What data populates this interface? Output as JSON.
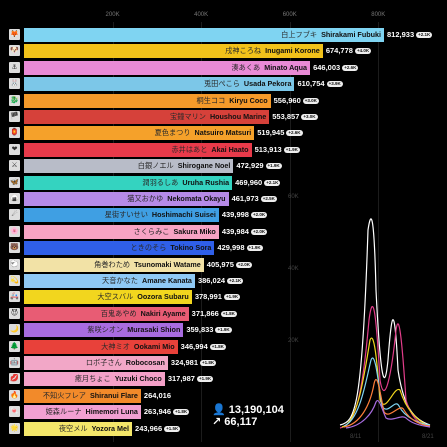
{
  "chart_data": {
    "type": "bar",
    "xlim": [
      0,
      850000
    ],
    "x_ticks": [
      "200K",
      "400K",
      "600K",
      "800K"
    ],
    "x_tick_values": [
      200000,
      400000,
      600000,
      800000
    ],
    "rows": [
      {
        "jp": "白上フブキ",
        "en": "Shirakami Fubuki",
        "value": 812933,
        "display": "812,933",
        "badge": "+2.1K",
        "color": "#7fd4f2",
        "icon": "🦊"
      },
      {
        "jp": "戌神ころね",
        "en": "Inugami Korone",
        "value": 674778,
        "display": "674,778",
        "badge": "+4.0K",
        "color": "#f2c21a",
        "icon": "🐶"
      },
      {
        "jp": "湊あくあ",
        "en": "Minato Aqua",
        "value": 646003,
        "display": "646,003",
        "badge": "+2.6K",
        "color": "#e98ad6",
        "icon": "⚓"
      },
      {
        "jp": "兎田ぺこら",
        "en": "Usada Pekora",
        "value": 610754,
        "display": "610,754",
        "badge": "+3.9K",
        "color": "#7cc7e8",
        "icon": "🐰"
      },
      {
        "jp": "桐生ココ",
        "en": "Kiryu Coco",
        "value": 556960,
        "display": "556,960",
        "badge": "+3.0K",
        "color": "#f59a2a",
        "icon": "🐉"
      },
      {
        "jp": "宝鐘マリン",
        "en": "Houshou Marine",
        "value": 553857,
        "display": "553,857",
        "badge": "+3.0K",
        "color": "#d6413a",
        "icon": "🏴"
      },
      {
        "jp": "夏色まつり",
        "en": "Natsuiro Matsuri",
        "value": 519945,
        "display": "519,945",
        "badge": "+2.6K",
        "color": "#f5a12a",
        "icon": "🏮"
      },
      {
        "jp": "赤井はあと",
        "en": "Akai Haato",
        "value": 513913,
        "display": "513,913",
        "badge": "+1.9K",
        "color": "#e83a4a",
        "icon": "❤"
      },
      {
        "jp": "白銀ノエル",
        "en": "Shirogane Noel",
        "value": 472929,
        "display": "472,929",
        "badge": "+1.9K",
        "color": "#b8bcc8",
        "icon": "⚔"
      },
      {
        "jp": "潤羽るしあ",
        "en": "Uruha Rushia",
        "value": 469960,
        "display": "469,960",
        "badge": "+2.1K",
        "color": "#34d3c0",
        "icon": "🦋"
      },
      {
        "jp": "猫又おかゆ",
        "en": "Nekomata Okayu",
        "value": 461973,
        "display": "461,973",
        "badge": "+2.5K",
        "color": "#b68ae8",
        "icon": "🍙"
      },
      {
        "jp": "星街すいせい",
        "en": "Hoshimachi Suisei",
        "value": 439998,
        "display": "439,998",
        "badge": "+2.0K",
        "color": "#3f9fe3",
        "icon": "☄"
      },
      {
        "jp": "さくらみこ",
        "en": "Sakura Miko",
        "value": 439984,
        "display": "439,984",
        "badge": "+2.0K",
        "color": "#f7a3c4",
        "icon": "🌸"
      },
      {
        "jp": "ときのそら",
        "en": "Tokino Sora",
        "value": 429998,
        "display": "429,998",
        "badge": "+1.9K",
        "color": "#2f5fe8",
        "icon": "🐻"
      },
      {
        "jp": "角巻わため",
        "en": "Tsunomaki Watame",
        "value": 405975,
        "display": "405,975",
        "badge": "+2.0K",
        "color": "#f2e2a6",
        "icon": "🐑"
      },
      {
        "jp": "天音かなた",
        "en": "Amane Kanata",
        "value": 386024,
        "display": "386,024",
        "badge": "+2.1K",
        "color": "#8fc9f5",
        "icon": "💫"
      },
      {
        "jp": "大空スバル",
        "en": "Oozora Subaru",
        "value": 378991,
        "display": "378,991",
        "badge": "+1.9K",
        "color": "#f2d61e",
        "icon": "🚑"
      },
      {
        "jp": "百鬼あやめ",
        "en": "Nakiri Ayame",
        "value": 371866,
        "display": "371,866",
        "badge": "+1.8K",
        "color": "#e85c74",
        "icon": "😈"
      },
      {
        "jp": "紫咲シオン",
        "en": "Murasaki Shion",
        "value": 359833,
        "display": "359,833",
        "badge": "+1.9K",
        "color": "#a86ce0",
        "icon": "🌙"
      },
      {
        "jp": "大神ミオ",
        "en": "Ookami Mio",
        "value": 346994,
        "display": "346,994",
        "badge": "+1.8K",
        "color": "#e8413a",
        "icon": "🌲"
      },
      {
        "jp": "ロボ子さん",
        "en": "Robocosan",
        "value": 324981,
        "display": "324,981",
        "badge": "+1.8K",
        "color": "#f2a7c7",
        "icon": "🤖"
      },
      {
        "jp": "癒月ちょこ",
        "en": "Yuzuki Choco",
        "value": 317987,
        "display": "317,987",
        "badge": "+1.9K",
        "color": "#f4a0c8",
        "icon": "💋"
      },
      {
        "jp": "不知火フレア",
        "en": "Shiranui Flare",
        "value": 264016,
        "display": "264,016",
        "badge": "",
        "color": "#f28a2a",
        "icon": "🔥"
      },
      {
        "jp": "姫森ルーナ",
        "en": "Himemori Luna",
        "value": 263946,
        "display": "263,946",
        "badge": "+1.8K",
        "color": "#f2a0d2",
        "icon": "🍬"
      },
      {
        "jp": "夜空メル",
        "en": "Yozora Mel",
        "value": 243966,
        "display": "243,966",
        "badge": "+1.5K",
        "color": "#f4e76a",
        "icon": "🌟"
      }
    ],
    "total": {
      "value": "13,190,104",
      "delta": "66,117"
    },
    "line_panel": {
      "type": "line",
      "y_ticks": [
        "60K",
        "40K",
        "20K"
      ],
      "x_ticks": [
        "8/11",
        "8/21"
      ]
    }
  }
}
